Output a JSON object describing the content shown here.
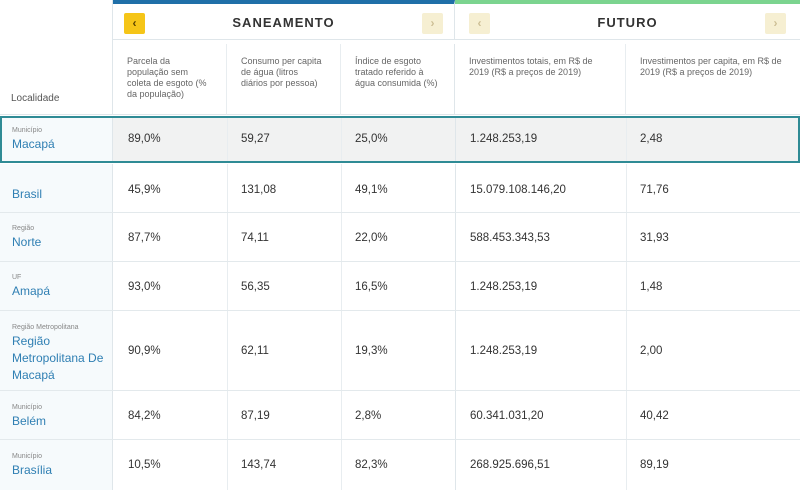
{
  "header": {
    "localidade_label": "Localidade",
    "groups": {
      "saneamento": {
        "title": "SANEAMENTO",
        "prev": "‹",
        "next": "›"
      },
      "futuro": {
        "title": "FUTURO",
        "prev": "‹",
        "next": "›"
      }
    },
    "columns": [
      "Parcela da população sem coleta de esgoto (% da população)",
      "Consumo per capita de água (litros diários por pessoa)",
      "Índice de esgoto tratado referido à água consumida (%)",
      "Investimentos totais, em R$ de 2019 (R$ a preços de 2019)",
      "Investimentos per capita, em R$ de 2019 (R$ a preços de 2019)"
    ]
  },
  "rows": [
    {
      "kind": "Município",
      "name": "Macapá",
      "values": [
        "89,0%",
        "59,27",
        "25,0%",
        "1.248.253,19",
        "2,48"
      ]
    },
    {
      "kind": "",
      "name": "Brasil",
      "values": [
        "45,9%",
        "131,08",
        "49,1%",
        "15.079.108.146,20",
        "71,76"
      ]
    },
    {
      "kind": "Região",
      "name": "Norte",
      "values": [
        "87,7%",
        "74,11",
        "22,0%",
        "588.453.343,53",
        "31,93"
      ]
    },
    {
      "kind": "UF",
      "name": "Amapá",
      "values": [
        "93,0%",
        "56,35",
        "16,5%",
        "1.248.253,19",
        "1,48"
      ]
    },
    {
      "kind": "Região Metropolitana",
      "name": "Região Metropolitana De Macapá",
      "values": [
        "90,9%",
        "62,11",
        "19,3%",
        "1.248.253,19",
        "2,00"
      ]
    },
    {
      "kind": "Município",
      "name": "Belém",
      "values": [
        "84,2%",
        "87,19",
        "2,8%",
        "60.341.031,20",
        "40,42"
      ]
    },
    {
      "kind": "Município",
      "name": "Brasília",
      "values": [
        "10,5%",
        "143,74",
        "82,3%",
        "268.925.696,51",
        "89,19"
      ]
    }
  ],
  "colors": {
    "accent_blue": "#1f6fa8",
    "accent_green": "#7bd48f",
    "link": "#2f7fb3",
    "arrow_active": "#f5c518",
    "highlight_border": "#2f8b95"
  }
}
